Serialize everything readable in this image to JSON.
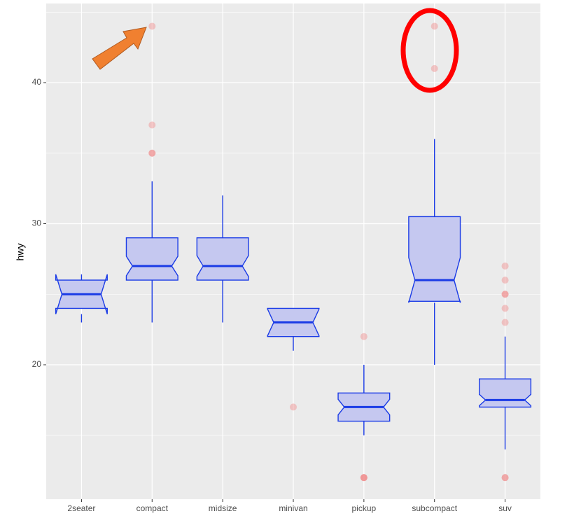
{
  "chart_data": {
    "type": "boxplot",
    "y_label": "hwy",
    "categories": [
      "2seater",
      "compact",
      "midsize",
      "minivan",
      "pickup",
      "subcompact",
      "suv"
    ],
    "boxes": [
      {
        "whisker_low": 23,
        "q1": 24,
        "median": 25,
        "q3": 26,
        "whisker_high": 26,
        "notch_low": 23.59,
        "notch_high": 26.41,
        "outliers": []
      },
      {
        "whisker_low": 23,
        "q1": 26,
        "median": 27,
        "q3": 29,
        "whisker_high": 33,
        "notch_low": 26.31,
        "notch_high": 27.69,
        "outliers": [
          35,
          37,
          35,
          44
        ]
      },
      {
        "whisker_low": 23,
        "q1": 26,
        "median": 27,
        "q3": 29,
        "whisker_high": 32,
        "notch_low": 26.26,
        "notch_high": 27.74,
        "outliers": []
      },
      {
        "whisker_low": 21,
        "q1": 22,
        "median": 23,
        "q3": 24,
        "whisker_high": 24,
        "notch_low": 22.05,
        "notch_high": 23.95,
        "outliers": [
          17
        ]
      },
      {
        "whisker_low": 15,
        "q1": 16,
        "median": 17,
        "q3": 18,
        "whisker_high": 20,
        "notch_low": 16.45,
        "notch_high": 17.55,
        "outliers": [
          12,
          12,
          12,
          22
        ]
      },
      {
        "whisker_low": 20,
        "q1": 24.5,
        "median": 26,
        "q3": 30.5,
        "whisker_high": 36,
        "notch_low": 24.4,
        "notch_high": 27.6,
        "outliers": [
          44,
          41
        ]
      },
      {
        "whisker_low": 14,
        "q1": 17,
        "median": 17.5,
        "q3": 19,
        "whisker_high": 22,
        "notch_low": 17.1,
        "notch_high": 17.9,
        "outliers": [
          12,
          12,
          23,
          24,
          25,
          25,
          26,
          27
        ]
      }
    ],
    "ylim": [
      10.47,
      45.61
    ],
    "yticks": [
      20,
      30,
      40
    ],
    "minor_yticks": [
      15,
      25,
      35,
      45
    ],
    "box_color": "#1a3be6",
    "box_fill": "#c5c8f0",
    "outlier_color": "#f08080",
    "grid": true
  }
}
